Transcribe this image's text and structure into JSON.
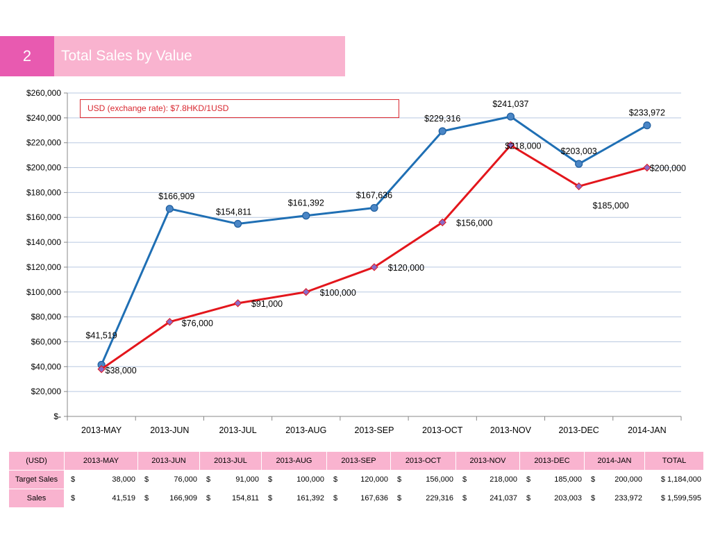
{
  "slide": {
    "number": "2",
    "title": "Total Sales by Value",
    "note": "USD (exchange rate):  $7.8HKD/1USD"
  },
  "colors": {
    "title_bar": "#f9b3cf",
    "number_box": "#e85ab0",
    "sales_line": "#1f6fb4",
    "target_line": "#e3161c",
    "note_border": "#d9262e"
  },
  "chart_data": {
    "type": "line",
    "categories": [
      "2013-MAY",
      "2013-JUN",
      "2013-JUL",
      "2013-AUG",
      "2013-SEP",
      "2013-OCT",
      "2013-NOV",
      "2013-DEC",
      "2014-JAN"
    ],
    "series": [
      {
        "name": "Sales",
        "values": [
          41519,
          166909,
          154811,
          161392,
          167636,
          229316,
          241037,
          203003,
          233972
        ],
        "labels": [
          "$41,519",
          "$166,909",
          "$154,811",
          "$161,392",
          "$167,636",
          "$229,316",
          "$241,037",
          "$203,003",
          "$233,972"
        ],
        "color": "#1f6fb4",
        "marker": "circle"
      },
      {
        "name": "Target Sales",
        "values": [
          38000,
          76000,
          91000,
          100000,
          120000,
          156000,
          218000,
          185000,
          200000
        ],
        "labels": [
          "$38,000",
          "$76,000",
          "$91,000",
          "$100,000",
          "$120,000",
          "$156,000",
          "$218,000",
          "$185,000",
          "$200,000"
        ],
        "color": "#e3161c",
        "marker": "diamond"
      }
    ],
    "ylim": [
      0,
      260000
    ],
    "ytick_step": 20000,
    "ytick_labels": [
      "$-",
      "$20,000",
      "$40,000",
      "$60,000",
      "$80,000",
      "$100,000",
      "$120,000",
      "$140,000",
      "$160,000",
      "$180,000",
      "$200,000",
      "$220,000",
      "$240,000",
      "$260,000"
    ],
    "grid": true,
    "legend": "none"
  },
  "table": {
    "header": [
      "(USD)",
      "2013-MAY",
      "2013-JUN",
      "2013-JUL",
      "2013-AUG",
      "2013-SEP",
      "2013-OCT",
      "2013-NOV",
      "2013-DEC",
      "2014-JAN",
      "TOTAL"
    ],
    "currency": "$",
    "rows": [
      {
        "label": "Target Sales",
        "values": [
          "38,000",
          "76,000",
          "91,000",
          "100,000",
          "120,000",
          "156,000",
          "218,000",
          "185,000",
          "200,000",
          "1,184,000"
        ]
      },
      {
        "label": "Sales",
        "values": [
          "41,519",
          "166,909",
          "154,811",
          "161,392",
          "167,636",
          "229,316",
          "241,037",
          "203,003",
          "233,972",
          "1,599,595"
        ]
      }
    ]
  }
}
